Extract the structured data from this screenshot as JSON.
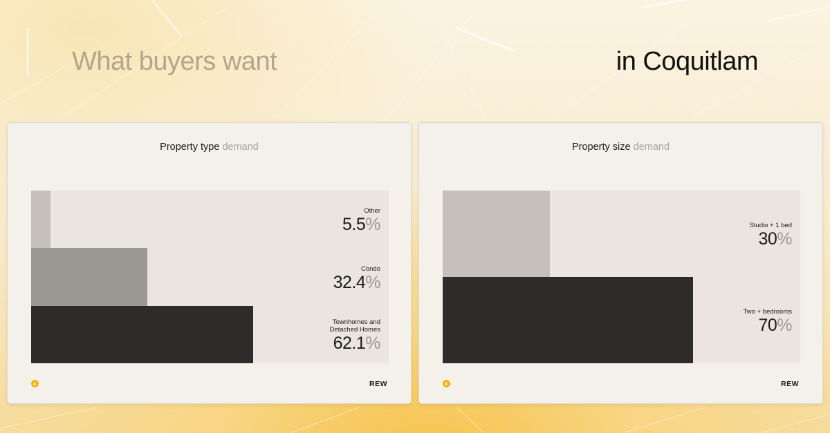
{
  "header": {
    "left": "What buyers want",
    "right": "in Coquitlam"
  },
  "brand": "REW",
  "colors": {
    "dark": "#2e2c2a",
    "mid": "#9c9892",
    "light": "#c5c0b9",
    "accent": "#f2b511"
  },
  "chart_data": [
    {
      "type": "bar",
      "title": "Property type",
      "title_suffix": "demand",
      "xlim": [
        0,
        100
      ],
      "categories": [
        "Other",
        "Condo",
        "Townhomes and\nDetached Homes"
      ],
      "values": [
        5.5,
        32.4,
        62.1
      ],
      "value_text": [
        "5.5",
        "32.4",
        "62.1"
      ],
      "unit": "%",
      "colors": [
        "#c5c0b9",
        "#9c9892",
        "#2e2c2a"
      ]
    },
    {
      "type": "bar",
      "title": "Property size",
      "title_suffix": "demand",
      "xlim": [
        0,
        100
      ],
      "categories": [
        "Studio + 1 bed",
        "Two + bedrooms"
      ],
      "values": [
        30,
        70
      ],
      "value_text": [
        "30",
        "70"
      ],
      "unit": "%",
      "colors": [
        "#c5c0b9",
        "#2e2c2a"
      ]
    }
  ]
}
